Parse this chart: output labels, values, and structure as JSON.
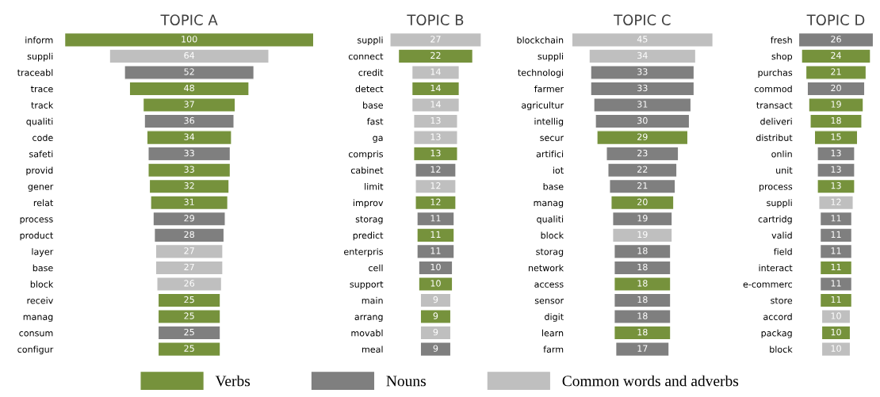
{
  "chart_data": [
    {
      "type": "other",
      "title": "TOPIC A",
      "data_labels": true,
      "legend": "bottom",
      "categories": [
        "inform",
        "suppli",
        "traceabl",
        "trace",
        "track",
        "qualiti",
        "code",
        "safeti",
        "provid",
        "gener",
        "relat",
        "process",
        "product",
        "layer",
        "base",
        "block",
        "receiv",
        "manag",
        "consum",
        "configur"
      ],
      "series": [
        {
          "name": "Verbs",
          "color": "#76923c",
          "values": [
            100,
            null,
            null,
            48,
            37,
            null,
            34,
            null,
            33,
            32,
            31,
            null,
            null,
            null,
            null,
            null,
            25,
            25,
            null,
            25
          ]
        },
        {
          "name": "Nouns",
          "color": "#7f7f7f",
          "values": [
            null,
            null,
            52,
            null,
            null,
            36,
            null,
            33,
            null,
            null,
            null,
            29,
            28,
            null,
            null,
            null,
            null,
            null,
            25,
            null
          ]
        },
        {
          "name": "Common words and adverbs",
          "color": "#bfbfbf",
          "values": [
            null,
            64,
            null,
            null,
            null,
            null,
            null,
            null,
            null,
            null,
            null,
            null,
            null,
            27,
            27,
            26,
            null,
            null,
            null,
            null
          ]
        }
      ]
    },
    {
      "type": "other",
      "title": "TOPIC B",
      "data_labels": true,
      "categories": [
        "suppli",
        "connect",
        "credit",
        "detect",
        "base",
        "fast",
        "ga",
        "compris",
        "cabinet",
        "limit",
        "improv",
        "storag",
        "predict",
        "enterpris",
        "cell",
        "support",
        "main",
        "arrang",
        "movabl",
        "meal"
      ],
      "series": [
        {
          "color": "#76923c",
          "values": [
            null,
            22,
            null,
            14,
            null,
            null,
            null,
            13,
            null,
            null,
            12,
            null,
            11,
            null,
            null,
            10,
            null,
            9,
            null,
            null
          ]
        },
        {
          "color": "#7f7f7f",
          "values": [
            null,
            null,
            null,
            null,
            null,
            null,
            null,
            null,
            12,
            null,
            null,
            11,
            null,
            11,
            10,
            null,
            null,
            null,
            null,
            9
          ]
        },
        {
          "color": "#bfbfbf",
          "values": [
            27,
            null,
            14,
            null,
            14,
            13,
            13,
            null,
            null,
            12,
            null,
            null,
            null,
            null,
            null,
            null,
            9,
            null,
            9,
            null
          ]
        }
      ]
    },
    {
      "type": "other",
      "title": "TOPIC C",
      "data_labels": true,
      "categories": [
        "blockchain",
        "suppli",
        "technologi",
        "farmer",
        "agricultur",
        "intellig",
        "secur",
        "artifici",
        "iot",
        "base",
        "manag",
        "qualiti",
        "block",
        "storag",
        "network",
        "access",
        "sensor",
        "digit",
        "learn",
        "farm"
      ],
      "series": [
        {
          "color": "#76923c",
          "values": [
            null,
            null,
            null,
            null,
            null,
            null,
            29,
            null,
            null,
            null,
            20,
            null,
            null,
            null,
            null,
            18,
            null,
            null,
            18,
            null
          ]
        },
        {
          "color": "#7f7f7f",
          "values": [
            null,
            null,
            33,
            33,
            31,
            30,
            null,
            23,
            22,
            21,
            null,
            19,
            null,
            18,
            18,
            null,
            18,
            18,
            null,
            17
          ]
        },
        {
          "color": "#bfbfbf",
          "values": [
            45,
            34,
            null,
            null,
            null,
            null,
            null,
            null,
            null,
            null,
            null,
            null,
            19,
            null,
            null,
            null,
            null,
            null,
            null,
            null
          ]
        }
      ]
    },
    {
      "type": "other",
      "title": "TOPIC D",
      "data_labels": true,
      "categories": [
        "fresh",
        "shop",
        "purchas",
        "commod",
        "transact",
        "deliveri",
        "distribut",
        "onlin",
        "unit",
        "process",
        "suppli",
        "cartridg",
        "valid",
        "field",
        "interact",
        "e-commerc",
        "store",
        "accord",
        "packag",
        "block"
      ],
      "series": [
        {
          "color": "#76923c",
          "values": [
            null,
            24,
            21,
            null,
            19,
            18,
            15,
            null,
            null,
            13,
            null,
            null,
            null,
            null,
            11,
            null,
            11,
            null,
            10,
            null
          ]
        },
        {
          "color": "#7f7f7f",
          "values": [
            26,
            null,
            null,
            20,
            null,
            null,
            null,
            13,
            13,
            null,
            null,
            11,
            11,
            11,
            null,
            11,
            null,
            null,
            null,
            null
          ]
        },
        {
          "color": "#bfbfbf",
          "values": [
            null,
            null,
            null,
            null,
            null,
            null,
            null,
            null,
            null,
            null,
            12,
            null,
            null,
            null,
            null,
            null,
            null,
            10,
            null,
            10
          ]
        }
      ]
    }
  ]
}
